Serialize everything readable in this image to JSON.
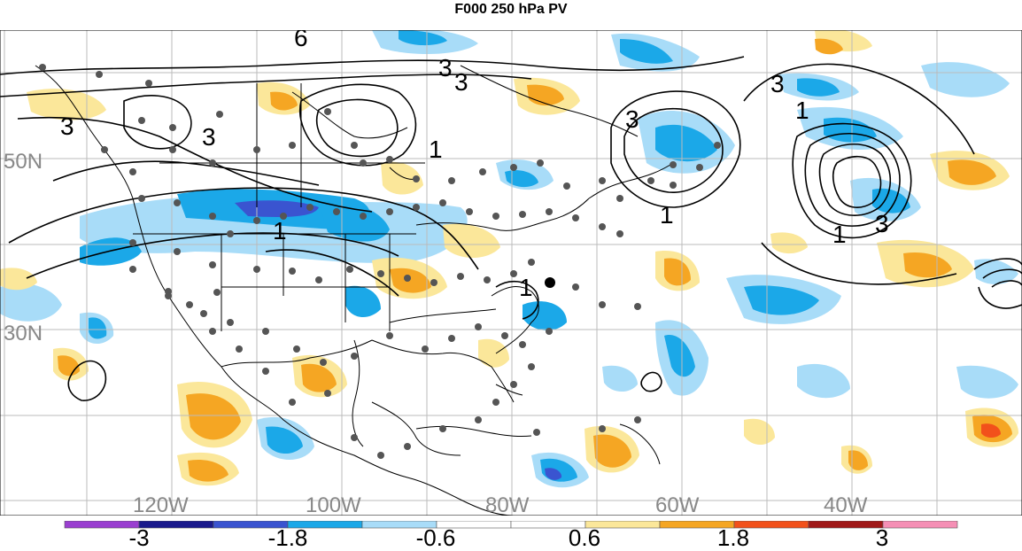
{
  "title": "F000 250 hPa PV",
  "lat_labels": [
    "50N",
    "30N"
  ],
  "lon_labels": [
    "120W",
    "100W",
    "80W",
    "60W",
    "40W"
  ],
  "contour_labels": [
    "6",
    "3",
    "3",
    "3",
    "1",
    "3",
    "3",
    "1",
    "3",
    "1",
    "1",
    "3",
    "1",
    "1"
  ],
  "colorbar": {
    "ticks": [
      "-3",
      "-1.8",
      "-0.6",
      "0.6",
      "1.8",
      "3"
    ],
    "colors": [
      "#9a3fd0",
      "#1a1a8c",
      "#3a54d0",
      "#1ba8e8",
      "#a8dcf8",
      "#ffffff",
      "#ffffff",
      "#fbe79a",
      "#f5a623",
      "#f2511b",
      "#a01818",
      "#f58fb5"
    ]
  },
  "palette": {
    "neg_light": "#a8dcf8",
    "neg_mid": "#1ba8e8",
    "neg_dark": "#3a54d0",
    "pos_light": "#fbe79a",
    "pos_mid": "#f5a623",
    "pos_dark": "#f2511b",
    "station": "#555555"
  }
}
